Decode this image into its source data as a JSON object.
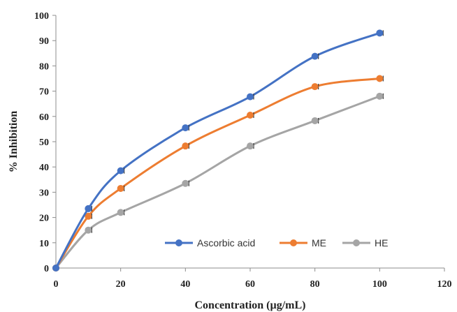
{
  "chart_data": {
    "type": "line",
    "xlabel": "Concentration (µg/mL)",
    "ylabel": "% Inhibition",
    "xlim": [
      0,
      120
    ],
    "ylim": [
      0,
      100
    ],
    "xticks": [
      0,
      20,
      40,
      60,
      80,
      100,
      120
    ],
    "yticks": [
      0,
      10,
      20,
      30,
      40,
      50,
      60,
      70,
      80,
      90,
      100
    ],
    "grid": false,
    "smooth": true,
    "error_bars": true,
    "legend_position": "bottom-right",
    "x": [
      0,
      10,
      20,
      40,
      60,
      80,
      100
    ],
    "series": [
      {
        "name": "Ascorbic acid",
        "color": "#4472C4",
        "values": [
          0,
          23.5,
          38.5,
          55.5,
          67.8,
          83.8,
          93
        ]
      },
      {
        "name": "ME",
        "color": "#ED7D31",
        "values": [
          0,
          20.5,
          31.5,
          48.3,
          60.5,
          71.8,
          75
        ]
      },
      {
        "name": "HE",
        "color": "#A5A5A5",
        "values": [
          0,
          15,
          22,
          33.5,
          48.3,
          58.3,
          68
        ]
      }
    ]
  }
}
